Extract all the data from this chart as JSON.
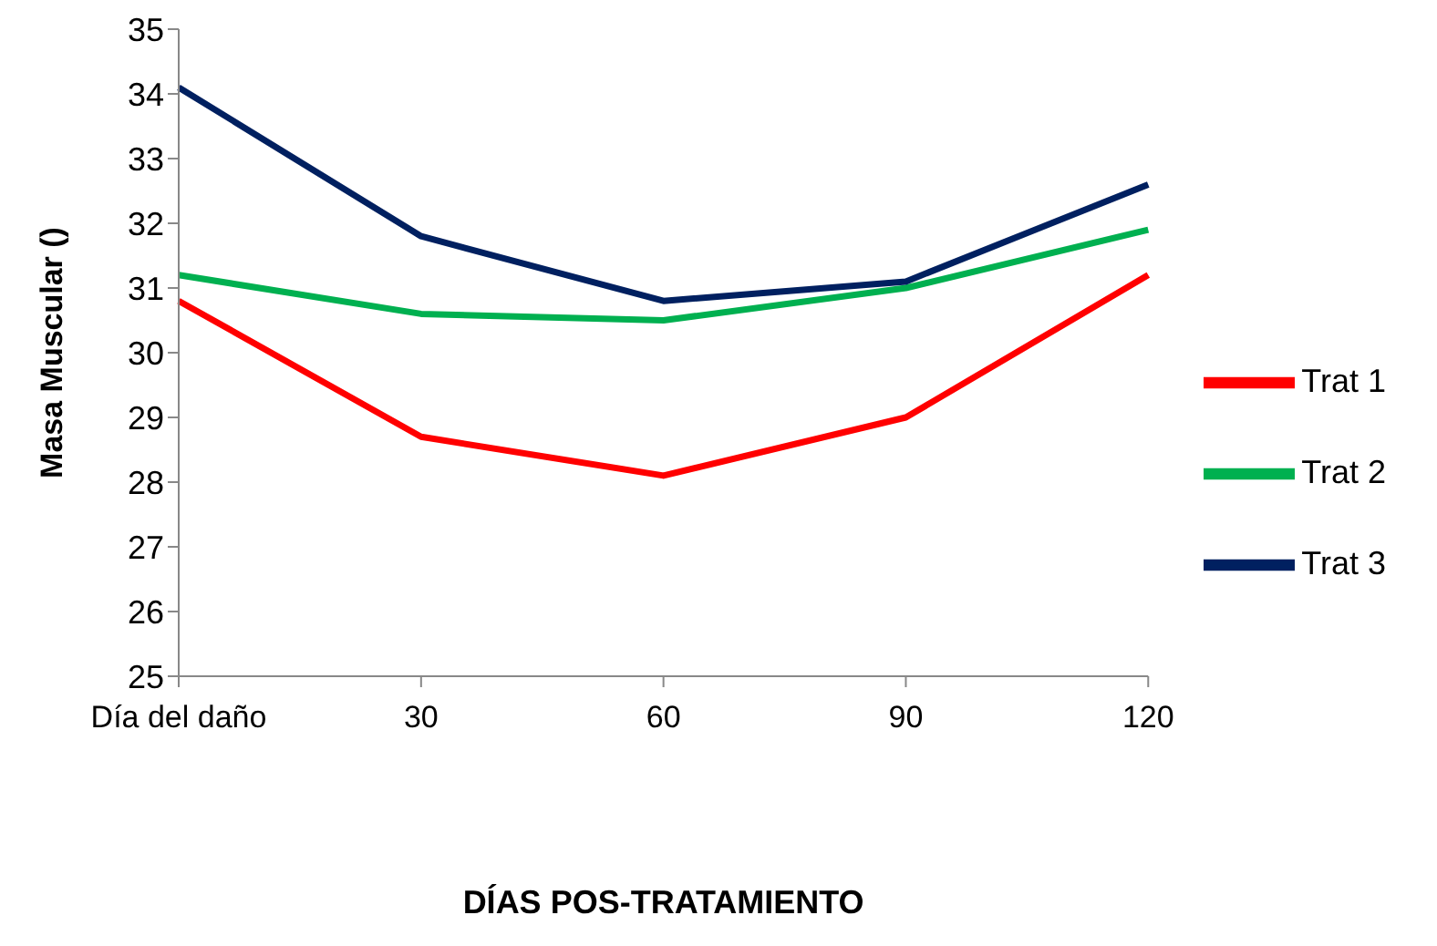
{
  "chart_data": {
    "type": "line",
    "xlabel": "DÍAS POS-TRATAMIENTO",
    "ylabel": "Masa Muscular ()",
    "categories": [
      "Día del daño",
      "30",
      "60",
      "90",
      "120"
    ],
    "series": [
      {
        "name": "Trat 1",
        "color": "#ff0000",
        "values": [
          30.8,
          28.7,
          28.1,
          29.0,
          31.2
        ]
      },
      {
        "name": "Trat 2",
        "color": "#00b050",
        "values": [
          31.2,
          30.6,
          30.5,
          31.0,
          31.9
        ]
      },
      {
        "name": "Trat 3",
        "color": "#002060",
        "values": [
          34.1,
          31.8,
          30.8,
          31.1,
          32.6
        ]
      }
    ],
    "ylim": [
      25,
      35
    ],
    "yticks": [
      25,
      26,
      27,
      28,
      29,
      30,
      31,
      32,
      33,
      34,
      35
    ],
    "grid": false,
    "legend": "right",
    "marker": "none",
    "line_style": "solid"
  }
}
